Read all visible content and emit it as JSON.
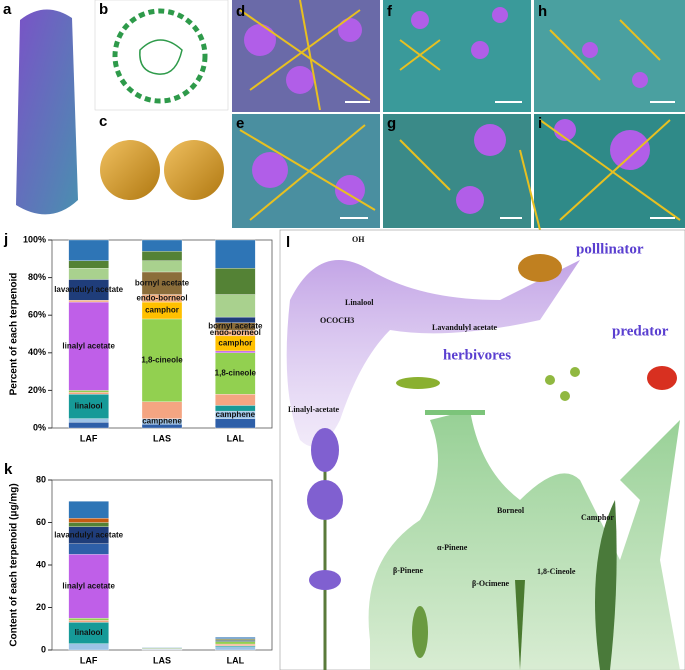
{
  "panel_labels": [
    "a",
    "b",
    "c",
    "d",
    "e",
    "f",
    "g",
    "h",
    "i",
    "j",
    "k",
    "l"
  ],
  "chart_data": [
    {
      "type": "stacked_bar",
      "ylabel": "Percent of each terpenoid",
      "categories": [
        "LAF",
        "LAS",
        "LAL"
      ],
      "ylim": [
        0,
        100
      ],
      "yticks": [
        {
          "value": 0,
          "label": "0%"
        },
        {
          "value": 20,
          "label": "20%"
        },
        {
          "value": 40,
          "label": "40%"
        },
        {
          "value": 60,
          "label": "60%"
        },
        {
          "value": 80,
          "label": "80%"
        },
        {
          "value": 100,
          "label": "100%"
        }
      ],
      "series": [
        {
          "color": "#2e5fa8",
          "values": [
            3,
            2,
            5
          ]
        },
        {
          "color": "#9dc3e6",
          "values": [
            2,
            3,
            4
          ],
          "labels": [
            null,
            "camphene",
            "camphene"
          ]
        },
        {
          "color": "#169a98",
          "values": [
            13,
            0,
            3
          ],
          "labels": [
            "linalool",
            null,
            null
          ]
        },
        {
          "color": "#f4a582",
          "values": [
            1,
            9,
            6
          ]
        },
        {
          "color": "#92d050",
          "values": [
            1,
            44,
            22
          ],
          "labels": [
            null,
            "1,8-cineole",
            "1,8-cineole"
          ]
        },
        {
          "color": "#bf5fe8",
          "values": [
            47,
            0,
            1
          ],
          "labels": [
            "linalyl acetate",
            null,
            null
          ]
        },
        {
          "color": "#ffc000",
          "values": [
            0,
            9,
            8
          ],
          "labels": [
            null,
            "camphor",
            "camphor"
          ]
        },
        {
          "color": "#f4b183",
          "values": [
            1,
            4,
            3
          ],
          "labels": [
            null,
            "endo-borneol",
            "endo-borneol"
          ]
        },
        {
          "color": "#8b6d3a",
          "values": [
            0,
            12,
            4
          ],
          "labels": [
            null,
            "bornyl acetate",
            "bornyl acetate"
          ]
        },
        {
          "color": "#1f3d7a",
          "values": [
            11,
            0,
            3
          ],
          "labels": [
            "lavandulyl acetate",
            null,
            null
          ]
        },
        {
          "color": "#a9d18e",
          "values": [
            6,
            6,
            12
          ]
        },
        {
          "color": "#548235",
          "values": [
            4,
            5,
            14
          ]
        },
        {
          "color": "#2e75b6",
          "values": [
            11,
            6,
            15
          ]
        }
      ]
    },
    {
      "type": "stacked_bar",
      "ylabel": "Content of each terpenoid (μg/mg)",
      "categories": [
        "LAF",
        "LAS",
        "LAL"
      ],
      "ylim": [
        0,
        80
      ],
      "yticks": [
        0,
        20,
        40,
        60,
        80
      ],
      "series": [
        {
          "color": "#9dc3e6",
          "values": [
            3,
            0.3,
            1.5
          ]
        },
        {
          "color": "#169a98",
          "values": [
            10,
            0,
            0.5
          ],
          "labels": [
            "linalool",
            null,
            null
          ]
        },
        {
          "color": "#f4a582",
          "values": [
            1,
            0.2,
            0.8
          ]
        },
        {
          "color": "#92d050",
          "values": [
            1,
            0.3,
            1.2
          ]
        },
        {
          "color": "#bf5fe8",
          "values": [
            30,
            0,
            0
          ],
          "labels": [
            "linalyl acetate",
            null,
            null
          ]
        },
        {
          "color": "#2e5fa8",
          "values": [
            5,
            0,
            0
          ]
        },
        {
          "color": "#1f3d7a",
          "values": [
            8,
            0.2,
            0.5
          ],
          "labels": [
            "lavandulyl acetate",
            null,
            null
          ]
        },
        {
          "color": "#548235",
          "values": [
            2,
            0.1,
            0.5
          ]
        },
        {
          "color": "#c55a11",
          "values": [
            2,
            0,
            0.3
          ]
        },
        {
          "color": "#2e75b6",
          "values": [
            8,
            0.2,
            0.7
          ]
        }
      ]
    }
  ],
  "diagram": {
    "pollinator": "polllinator",
    "predator": "predator",
    "herbivores": "herbivores",
    "linalool": "Linalool",
    "lavandulyl_acetate": "Lavandulyl acetate",
    "linalyl_acetate": "Linalyl-acetate",
    "borneol": "Borneol",
    "camphor": "Camphor",
    "alpha_pinene": "α-Pinene",
    "beta_pinene": "β-Pinene",
    "beta_ocimene": "β-Ocimene",
    "cineole": "1,8-Cineole"
  }
}
